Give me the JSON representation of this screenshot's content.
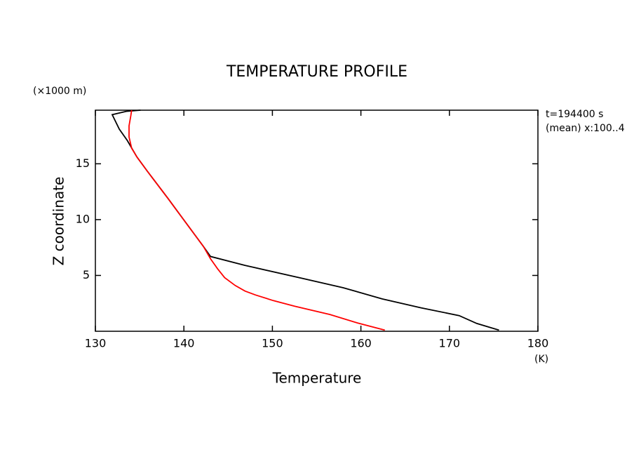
{
  "chart_data": {
    "type": "line",
    "title": "TEMPERATURE  PROFILE",
    "xlabel": "Temperature",
    "ylabel": "Z coordinate",
    "xunit": "(K)",
    "yunit": "(×1000 m)",
    "annotations": [
      "t=194400 s",
      "(mean) x:100..4"
    ],
    "xlim": [
      130,
      180
    ],
    "xticks": [
      130,
      140,
      150,
      160,
      170,
      180
    ],
    "ylim": [
      0,
      19.8
    ],
    "yticks": [
      5,
      10,
      15
    ],
    "series": [
      {
        "color": "#000000",
        "x": [
          175.6,
          173.1,
          171.1,
          166.8,
          162.4,
          158.0,
          153.3,
          146.9,
          143.0,
          142.2,
          140.2,
          138.2,
          135.9,
          134.7,
          133.6,
          132.7,
          131.9,
          133.5,
          135.1
        ],
        "values": [
          0.1,
          0.7,
          1.4,
          2.1,
          2.9,
          3.9,
          4.75,
          5.9,
          6.7,
          7.6,
          9.75,
          11.9,
          14.3,
          15.6,
          17.1,
          18.1,
          19.4,
          19.7,
          19.8
        ]
      },
      {
        "color": "#ff0000",
        "x": [
          162.7,
          159.6,
          156.5,
          152.5,
          150.1,
          148.1,
          146.9,
          145.8,
          144.6,
          143.8,
          143.0,
          142.2,
          140.2,
          138.2,
          135.9,
          134.7,
          134.1,
          133.8,
          133.8,
          134.0,
          134.1
        ],
        "values": [
          0.1,
          0.75,
          1.5,
          2.25,
          2.75,
          3.25,
          3.6,
          4.1,
          4.8,
          5.6,
          6.5,
          7.6,
          9.75,
          11.9,
          14.3,
          15.6,
          16.4,
          17.4,
          18.4,
          19.3,
          19.8
        ]
      }
    ]
  }
}
